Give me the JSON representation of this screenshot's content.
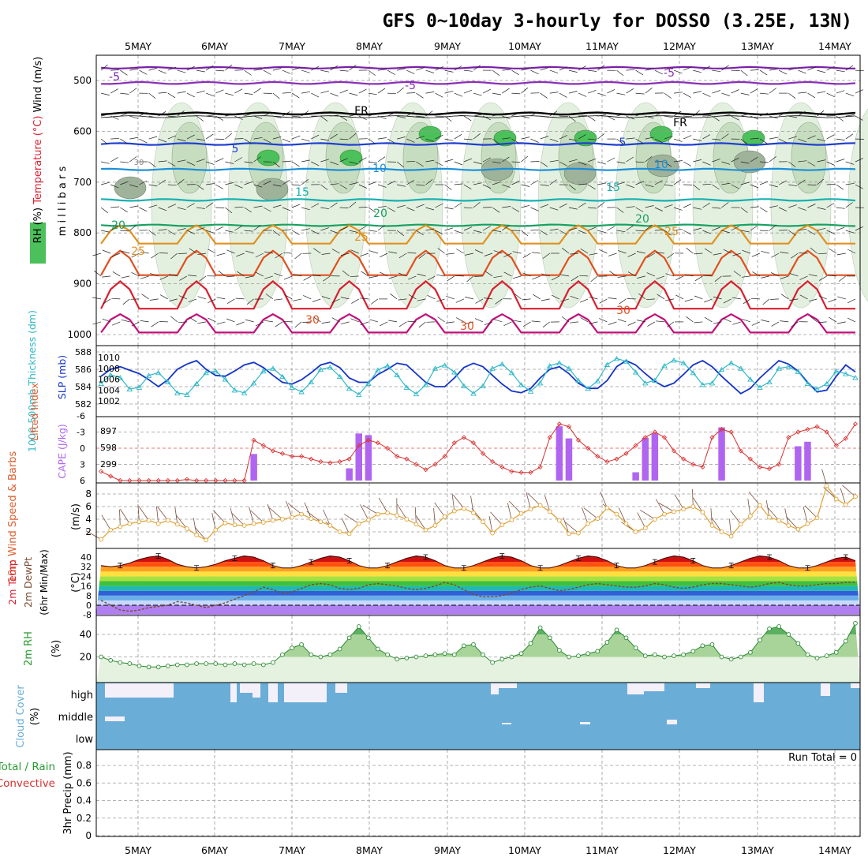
{
  "title": "GFS 0~10day 3-hourly for DOSSO (3.25E, 13N)",
  "chart_data": {
    "type": "meteogram",
    "x_labels": [
      "5MAY",
      "6MAY",
      "7MAY",
      "8MAY",
      "9MAY",
      "10MAY",
      "11MAY",
      "12MAY",
      "13MAY",
      "14MAY"
    ],
    "panels": {
      "upper_air": {
        "ylabel": "m i l l i b a r s",
        "yticks": [
          "500",
          "600",
          "700",
          "800",
          "900",
          "1000"
        ],
        "legend": [
          "RH (%)",
          "Temperature (°C)",
          "Wind (m/s)"
        ],
        "temperature_contour_labels": [
          "-5",
          "-5",
          "-5",
          "FR",
          "FR",
          "5",
          "5",
          "10",
          "10",
          "15",
          "15",
          "20",
          "20",
          "25",
          "25",
          "30",
          "30",
          "30",
          "30",
          "30",
          "30",
          "30",
          "30"
        ],
        "rh_contour_label": "30"
      },
      "thickness_slp": {
        "ylabel_left": "1000-500mb Thickness (dm)",
        "ylabel_right": "SLP (mb)",
        "yticks_left": [
          "588",
          "586",
          "584",
          "582"
        ],
        "yticks_right": [
          "1010",
          "1008",
          "1006",
          "1004",
          "1002"
        ],
        "thickness": [
          585.2,
          586.0,
          586.3,
          585.9,
          585.5,
          584.8,
          584.0,
          584.8,
          586.0,
          586.6,
          587.0,
          586.0,
          585.3,
          585.2,
          585.8,
          586.5,
          586.8,
          586.2,
          585.3,
          584.5,
          584.3,
          584.8,
          585.6,
          586.5,
          586.8,
          586.2,
          585.0,
          584.5,
          584.5,
          585.4,
          586.0,
          586.7,
          586.5,
          585.5,
          584.5,
          584.0,
          584.0,
          585.0,
          586.2,
          586.7,
          586.3,
          585.3,
          584.3,
          583.5,
          583.3,
          583.8,
          585.0,
          586.0,
          586.3,
          585.5,
          584.4,
          583.8,
          583.8,
          584.7,
          586.3,
          587.0,
          586.5,
          585.5,
          584.6,
          584.0,
          584.4,
          585.4,
          586.5,
          587.0,
          586.3,
          585.2,
          584.2,
          583.2,
          583.8,
          585.0,
          586.0,
          587.0,
          586.6,
          585.8,
          584.5,
          583.4,
          583.6,
          585.2,
          586.5,
          585.7
        ],
        "slp": [
          1005.2,
          1006.8,
          1006.3,
          1004.2,
          1004.5,
          1006.7,
          1007.2,
          1005.5,
          1003.5,
          1003.2,
          1005.2,
          1007.2,
          1007.5,
          1006.0,
          1004.0,
          1003.5,
          1005.3,
          1007.5,
          1008.0,
          1006.5,
          1004.5,
          1003.7,
          1005.5,
          1007.8,
          1008.2,
          1006.5,
          1004.3,
          1003.2,
          1005.2,
          1007.7,
          1008.5,
          1006.8,
          1004.5,
          1003.3,
          1005.0,
          1008.0,
          1008.6,
          1007.3,
          1004.8,
          1003.4,
          1004.8,
          1008.0,
          1008.8,
          1007.2,
          1005.0,
          1003.8,
          1005.3,
          1008.5,
          1009.0,
          1008.0,
          1005.8,
          1004.3,
          1005.7,
          1008.7,
          1009.8,
          1009.3,
          1007.3,
          1005.3,
          1005.8,
          1008.5,
          1009.5,
          1009.0,
          1007.2,
          1005.0,
          1005.3,
          1007.8,
          1009.0,
          1008.0,
          1006.0,
          1004.5,
          1005.5,
          1008.0,
          1008.3,
          1007.4,
          1005.2,
          1004.2,
          1005.2,
          1007.5,
          1007.0,
          1006.3
        ]
      },
      "cape_li": {
        "ylabel_left": "Lifted Index",
        "ylabel_right": "CAPE (J/kg)",
        "yticks_left": [
          "-6",
          "-3",
          "0",
          "3",
          "6"
        ],
        "yticks_right": [
          "897",
          "598",
          "299"
        ],
        "lifted_index": [
          4.3,
          5.2,
          6.0,
          6.0,
          6.0,
          6.0,
          6.0,
          6.0,
          6.0,
          5.8,
          6.0,
          6.0,
          6.0,
          6.0,
          6.0,
          6.0,
          -1.5,
          -0.5,
          0.5,
          1.0,
          1.5,
          1.5,
          2.0,
          2.5,
          2.7,
          2.5,
          2.0,
          -0.5,
          -1.5,
          -1.0,
          0.0,
          1.5,
          2.0,
          3.0,
          4.0,
          3.0,
          1.5,
          -1.0,
          -2.0,
          -1.0,
          1.0,
          2.5,
          3.5,
          4.3,
          4.5,
          4.5,
          3.5,
          -2.0,
          -4.5,
          -4.0,
          -1.5,
          0.0,
          1.5,
          2.5,
          2.0,
          1.0,
          -0.5,
          -2.0,
          -3.0,
          -2.0,
          0.5,
          2.0,
          3.0,
          3.5,
          -2.0,
          -3.5,
          -3.0,
          0.5,
          2.0,
          3.5,
          3.8,
          3.0,
          -2.0,
          -3.0,
          -3.5,
          -4.0,
          -3.0,
          -0.5,
          -1.8,
          -4.5
        ],
        "cape": [
          0,
          0,
          0,
          0,
          0,
          0,
          0,
          0,
          0,
          0,
          0,
          0,
          0,
          0,
          0,
          0,
          480,
          0,
          0,
          0,
          0,
          0,
          0,
          0,
          0,
          0,
          220,
          850,
          820,
          0,
          0,
          0,
          0,
          0,
          0,
          0,
          0,
          0,
          0,
          0,
          0,
          0,
          0,
          0,
          0,
          0,
          0,
          0,
          980,
          760,
          0,
          0,
          0,
          0,
          0,
          0,
          150,
          770,
          850,
          0,
          0,
          0,
          0,
          0,
          0,
          960,
          0,
          0,
          0,
          0,
          0,
          0,
          0,
          620,
          700,
          0,
          0,
          0,
          0,
          0
        ]
      },
      "wind10m": {
        "ylabel": "10m Wind Speed & Barbs",
        "unit": "(m/s)",
        "yticks": [
          "8",
          "6",
          "4",
          "2"
        ],
        "speed": [
          0.8,
          2.3,
          2.8,
          3.3,
          3.6,
          3.8,
          3.3,
          3.8,
          3.2,
          2.5,
          1.5,
          0.7,
          2.3,
          3.4,
          3.1,
          3.0,
          3.3,
          3.5,
          3.8,
          4.0,
          4.3,
          4.8,
          4.1,
          3.6,
          3.0,
          2.0,
          1.7,
          3.3,
          3.9,
          4.8,
          5.0,
          4.6,
          4.0,
          3.2,
          2.3,
          3.0,
          4.4,
          5.3,
          5.7,
          5.0,
          3.6,
          1.8,
          3.1,
          3.9,
          4.9,
          5.6,
          6.2,
          5.2,
          3.8,
          1.7,
          1.8,
          3.3,
          4.1,
          5.8,
          4.8,
          3.3,
          2.0,
          2.6,
          4.0,
          4.8,
          5.2,
          5.6,
          6.0,
          5.1,
          3.0,
          2.0,
          1.3,
          3.2,
          4.5,
          6.2,
          4.3,
          3.8,
          3.0,
          2.4,
          3.3,
          4.2,
          9.3,
          7.2,
          6.3,
          7.6
        ]
      },
      "temp2m": {
        "ylabel": "2m Temp 2m DewPt (6hr Min/Max)",
        "unit": "(°C)",
        "yticks": [
          "40",
          "32",
          "24",
          "16",
          "8",
          "0",
          "-8"
        ],
        "temperature": [
          33,
          32,
          33,
          35,
          38,
          40,
          41,
          38,
          34,
          32,
          31,
          32,
          34,
          37,
          39,
          41,
          40,
          37,
          33,
          31,
          31,
          33,
          36,
          39,
          41,
          40,
          37,
          33,
          31,
          31,
          33,
          36,
          39,
          41,
          40,
          37,
          33,
          31,
          31,
          33,
          36,
          39,
          41,
          40,
          37,
          33,
          31,
          31,
          33,
          36,
          39,
          41,
          40,
          37,
          33,
          31,
          31,
          33,
          36,
          39,
          41,
          40,
          37,
          33,
          31,
          31,
          33,
          36,
          39,
          41,
          40,
          37,
          33,
          31,
          31,
          33,
          36,
          39,
          40,
          37
        ],
        "dewpoint": [
          4,
          0,
          -4,
          -5,
          -4,
          -2,
          -1,
          0,
          3,
          2,
          0,
          -2,
          0,
          2,
          5,
          8,
          11,
          15,
          13,
          10,
          11,
          14,
          17,
          18,
          17,
          14,
          13,
          14,
          17,
          18,
          17,
          16,
          14,
          13,
          14,
          16,
          19,
          17,
          13,
          9,
          7,
          7,
          8,
          10,
          13,
          15,
          16,
          14,
          12,
          13,
          15,
          17,
          18,
          17,
          16,
          15,
          15,
          16,
          18,
          17,
          15,
          14,
          15,
          17,
          18,
          18,
          17,
          16,
          15,
          16,
          18,
          19,
          17,
          16,
          16,
          17,
          18,
          18,
          19,
          19
        ]
      },
      "rh2m": {
        "ylabel": "2m RH",
        "unit": "(%)",
        "yticks": [
          "40",
          "20"
        ],
        "rh": [
          20,
          17,
          15,
          14,
          12,
          11,
          11,
          12,
          13,
          13,
          14,
          14,
          14,
          13,
          14,
          13,
          14,
          13,
          15,
          22,
          28,
          31,
          22,
          20,
          22,
          27,
          37,
          47,
          37,
          27,
          22,
          18,
          19,
          20,
          21,
          22,
          23,
          22,
          30,
          31,
          22,
          15,
          18,
          20,
          23,
          32,
          46,
          37,
          26,
          20,
          21,
          23,
          25,
          33,
          44,
          37,
          28,
          21,
          22,
          20,
          21,
          22,
          25,
          30,
          31,
          20,
          18,
          20,
          24,
          35,
          45,
          47,
          40,
          32,
          22,
          19,
          21,
          24,
          34,
          50
        ]
      },
      "cloud": {
        "ylabel": "Cloud Cover",
        "unit": "(%)",
        "levels": [
          "high",
          "middle",
          "low"
        ]
      },
      "precip": {
        "ylabel_left": "Total / Rain",
        "ylabel_left2": "Convective",
        "ylabel": "3hr Precip (mm)",
        "yticks": [
          "0.8",
          "0.6",
          "0.4",
          "0.2",
          "0"
        ],
        "run_total_label": "Run Total = 0"
      }
    }
  }
}
